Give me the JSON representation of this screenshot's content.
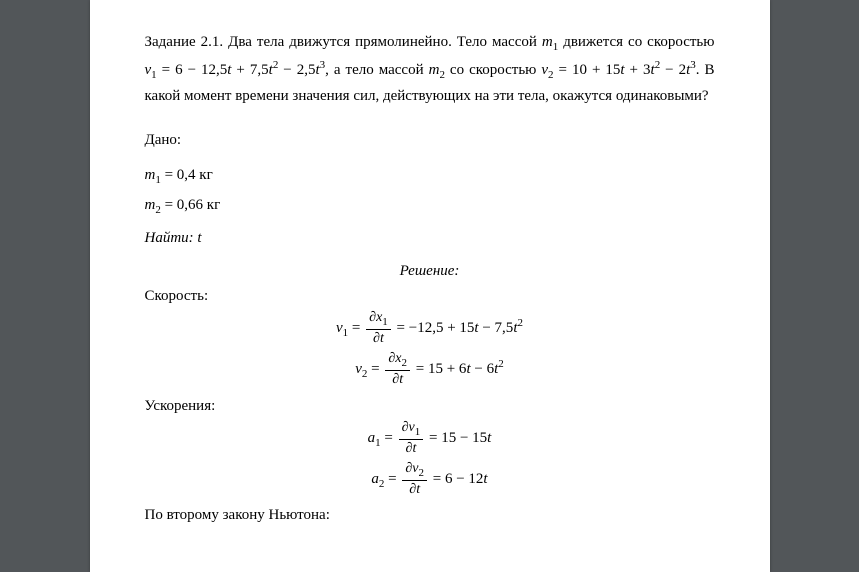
{
  "problem": {
    "title_prefix": "Задание 2.1.",
    "text_part1": " Два тела движутся прямолинейно. Тело массой ",
    "m1": "m",
    "m1_sub": "1",
    "text_part2": " движется со скоростью ",
    "v1": "v",
    "v1_sub": "1",
    "eq1": " = 6 − 12,5",
    "t1": "t",
    "eq2": " + 7,5",
    "t2": "t",
    "sup2": "2",
    "eq3": " − 2,5",
    "t3": "t",
    "sup3": "3",
    "text_part3": ", а тело массой ",
    "m2": "m",
    "m2_sub": "2",
    "text_part4": " со скоростью ",
    "v2": "v",
    "v2_sub": "2",
    "eq4": " = 10 + 15",
    "t4": "t",
    "eq5": " + 3",
    "t5": "t",
    "eq6": " − 2",
    "t6": "t",
    "text_part5": ". В какой момент времени значения сил, действующих на эти тела, окажутся одинаковыми?"
  },
  "given": {
    "label": "Дано:",
    "m1_var": "m",
    "m1_sub": "1",
    "m1_val": " = 0,4 кг",
    "m2_var": "m",
    "m2_sub": "2",
    "m2_val": " = 0,66 кг",
    "find_label": "Найти:",
    "find_var": " t"
  },
  "solution": {
    "label": "Решение:",
    "velocity_label": "Скорость:",
    "v1_lhs_var": "v",
    "v1_lhs_sub": "1",
    "eq_sign": " = ",
    "partial": "∂",
    "x1": "x",
    "sub1": "1",
    "t": "t",
    "v1_rhs": " = −12,5 + 15",
    "v1_rhs2": " − 7,5",
    "v2_lhs_var": "v",
    "v2_lhs_sub": "2",
    "x2": "x",
    "sub2": "2",
    "v2_rhs": " = 15 + 6",
    "v2_rhs2": " − 6",
    "sup2": "2",
    "accel_label": "Ускорения:",
    "a1_lhs_var": "a",
    "a1_rhs": " = 15 − 15",
    "a2_lhs_var": "a",
    "a2_rhs": " = 6 − 12",
    "newton_label": "По второму закону Ньютона:"
  },
  "style": {
    "background": "#525659",
    "page_bg": "#ffffff",
    "text_color": "#000000",
    "font_family": "Times New Roman"
  }
}
